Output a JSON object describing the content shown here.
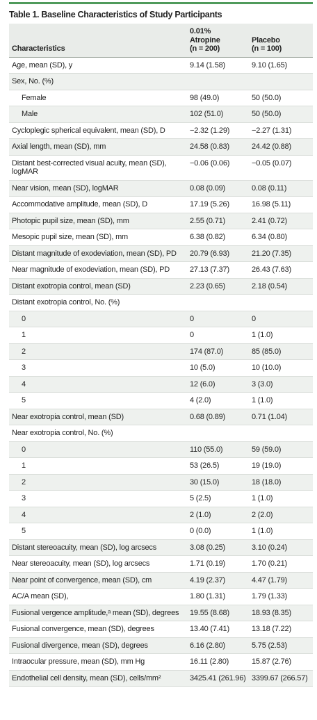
{
  "title": "Table 1. Baseline Characteristics of Study Participants",
  "header": {
    "label": "Characteristics",
    "columns": [
      [
        "0.01%",
        "Atropine",
        "(n = 200)"
      ],
      [
        "Placebo",
        "(n = 100)"
      ]
    ]
  },
  "rows": [
    [
      "Age, mean (SD), y",
      "9.14 (1.58)",
      "9.10 (1.65)"
    ],
    {
      "label": "Sex, No. (%)",
      "items": [
        [
          "Female",
          "98 (49.0)",
          "50 (50.0)"
        ],
        [
          "Male",
          "102 (51.0)",
          "50 (50.0)"
        ]
      ]
    },
    [
      "Cycloplegic spherical equivalent, mean (SD), D",
      "−2.32 (1.29)",
      "−2.27 (1.31)"
    ],
    [
      "Axial length, mean (SD), mm",
      "24.58 (0.83)",
      "24.42 (0.88)"
    ],
    [
      "Distant best-corrected visual acuity, mean (SD), logMAR",
      "−0.06 (0.06)",
      "−0.05 (0.07)"
    ],
    [
      "Near vision, mean (SD), logMAR",
      "0.08 (0.09)",
      "0.08 (0.11)"
    ],
    [
      "Accommodative amplitude, mean (SD), D",
      "17.19 (5.26)",
      "16.98 (5.11)"
    ],
    [
      "Photopic pupil size, mean (SD), mm",
      "2.55 (0.71)",
      "2.41 (0.72)"
    ],
    [
      "Mesopic pupil size, mean (SD), mm",
      "6.38 (0.82)",
      "6.34 (0.80)"
    ],
    [
      "Distant magnitude of exodeviation, mean (SD), PD",
      "20.79 (6.93)",
      "21.20 (7.35)"
    ],
    [
      "Near magnitude of exodeviation, mean (SD), PD",
      "27.13 (7.37)",
      "26.43 (7.63)"
    ],
    [
      "Distant exotropia control, mean (SD)",
      "2.23 (0.65)",
      "2.18 (0.54)"
    ],
    {
      "label": "Distant exotropia control, No. (%)",
      "items": [
        [
          "0",
          "0",
          "0"
        ],
        [
          "1",
          "0",
          "1 (1.0)"
        ],
        [
          "2",
          "174 (87.0)",
          "85 (85.0)"
        ],
        [
          "3",
          "10 (5.0)",
          "10 (10.0)"
        ],
        [
          "4",
          "12 (6.0)",
          "3 (3.0)"
        ],
        [
          "5",
          "4 (2.0)",
          "1 (1.0)"
        ]
      ]
    },
    [
      "Near exotropia control, mean (SD)",
      "0.68 (0.89)",
      "0.71 (1.04)"
    ],
    {
      "label": "Near exotropia control, No. (%)",
      "items": [
        [
          "0",
          "110 (55.0)",
          "59 (59.0)"
        ],
        [
          "1",
          "53 (26.5)",
          "19 (19.0)"
        ],
        [
          "2",
          "30 (15.0)",
          "18 (18.0)"
        ],
        [
          "3",
          "5 (2.5)",
          "1 (1.0)"
        ],
        [
          "4",
          "2 (1.0)",
          "2 (2.0)"
        ],
        [
          "5",
          "0 (0.0)",
          "1 (1.0)"
        ]
      ]
    },
    [
      "Distant stereoacuity, mean (SD), log arcsecs",
      "3.08 (0.25)",
      "3.10 (0.24)"
    ],
    [
      "Near stereoacuity, mean (SD), log arcsecs",
      "1.71 (0.19)",
      "1.70 (0.21)"
    ],
    [
      "Near point of convergence, mean (SD), cm",
      "4.19 (2.37)",
      "4.47 (1.79)"
    ],
    [
      "AC/A mean (SD),",
      "1.80 (1.31)",
      "1.79 (1.33)"
    ],
    [
      "Fusional vergence amplitude,ᵃ mean (SD), degrees",
      "19.55 (8.68)",
      "18.93 (8.35)"
    ],
    [
      "Fusional convergence, mean (SD), degrees",
      "13.40 (7.41)",
      "13.18 (7.22)"
    ],
    [
      "Fusional divergence, mean (SD), degrees",
      "6.16 (2.80)",
      "5.75 (2.53)"
    ],
    [
      "Intraocular pressure, mean (SD), mm Hg",
      "16.11 (2.80)",
      "15.87 (2.76)"
    ],
    [
      "Endothelial cell density, mean (SD), cells/mm²",
      "3425.41 (261.96)",
      "3399.67 (266.57)"
    ]
  ]
}
